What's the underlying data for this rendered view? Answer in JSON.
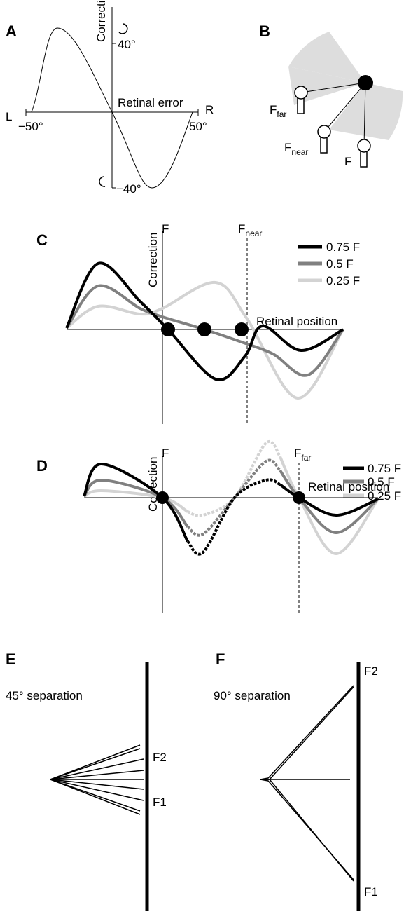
{
  "panel_a": {
    "label": "A",
    "y_axis_label": "Correction",
    "x_axis_label": "Retinal error",
    "left_label": "L",
    "right_label": "R",
    "x_ticks": [
      "−50°",
      "50°"
    ],
    "y_ticks": [
      "40°",
      "−40°"
    ]
  },
  "panel_b": {
    "label": "B",
    "targets": [
      {
        "base": "F",
        "sub": "far"
      },
      {
        "base": "F",
        "sub": "near"
      },
      {
        "base": "F"
      }
    ]
  },
  "panel_c": {
    "label": "C",
    "y_axis_label": "Correction",
    "x_axis_label": "Retinal position",
    "markers": [
      {
        "base": "F"
      },
      {
        "base": "F",
        "sub": "near"
      }
    ],
    "legend": [
      "0.75 F",
      "0.5 F",
      "0.25 F"
    ]
  },
  "panel_d": {
    "label": "D",
    "y_axis_label": "Correction",
    "x_axis_label": "Retinal position",
    "markers": [
      {
        "base": "F"
      },
      {
        "base": "F",
        "sub": "far"
      }
    ],
    "legend": [
      "0.75 F",
      "0.5 F",
      "0.25 F"
    ]
  },
  "panel_e": {
    "label": "E",
    "caption": "45° separation",
    "targets": [
      "F2",
      "F1"
    ]
  },
  "panel_f": {
    "label": "F",
    "caption": "90° separation",
    "targets": [
      "F2",
      "F1"
    ]
  }
}
